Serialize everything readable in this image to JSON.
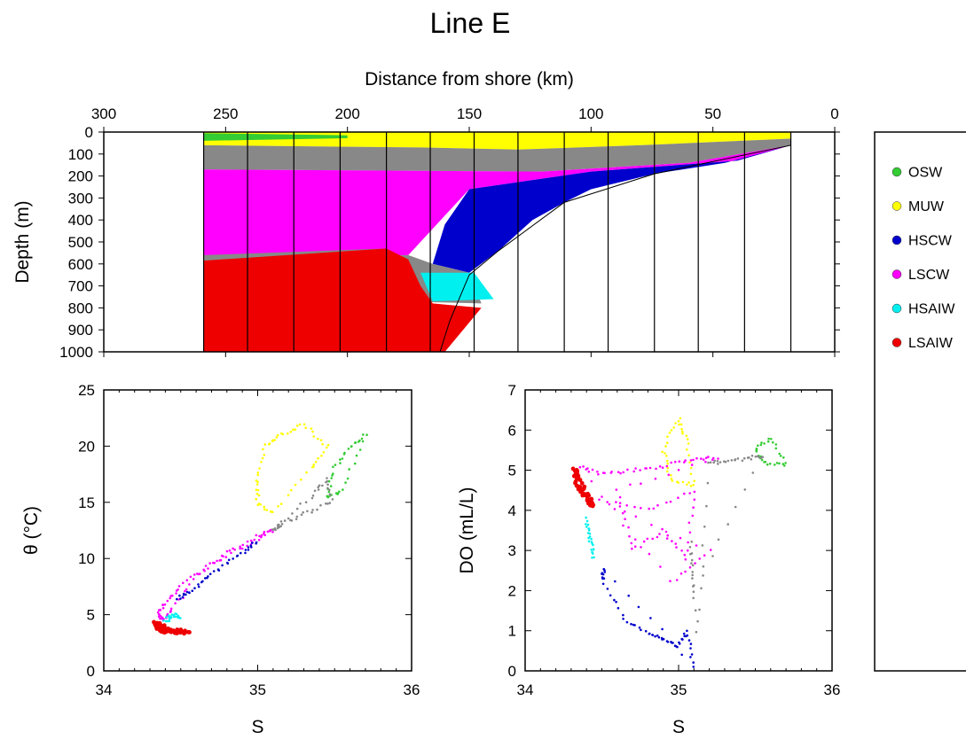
{
  "title": "Line E",
  "colors": {
    "OSW": "#33cc33",
    "MUW": "#ffff00",
    "HSCW": "#0000cc",
    "LSCW": "#ff00ff",
    "HSAIW": "#00f0f0",
    "LSAIW": "#ee0000",
    "mix": "#888888"
  },
  "legend": {
    "items": [
      {
        "label": "OSW",
        "key": "OSW"
      },
      {
        "label": "MUW",
        "key": "MUW"
      },
      {
        "label": "HSCW",
        "key": "HSCW"
      },
      {
        "label": "LSCW",
        "key": "LSCW"
      },
      {
        "label": "HSAIW",
        "key": "HSAIW"
      },
      {
        "label": "LSAIW",
        "key": "LSAIW"
      }
    ]
  },
  "chart_data": [
    {
      "type": "area",
      "xlabel": "Distance from shore (km)",
      "ylabel": "Depth (m)",
      "xlim": [
        300,
        0
      ],
      "ylim": [
        0,
        1000
      ],
      "x_ticks": [
        300,
        250,
        200,
        150,
        100,
        50,
        0
      ],
      "y_ticks": [
        0,
        100,
        200,
        300,
        400,
        500,
        600,
        700,
        800,
        900,
        1000
      ],
      "stations_km": [
        259,
        241,
        222,
        203,
        184,
        166,
        148,
        130,
        111,
        93,
        74,
        56,
        37,
        18
      ],
      "layers": [
        {
          "key": "MUW",
          "poly": [
            [
              259,
              0
            ],
            [
              18,
              0
            ],
            [
              18,
              30
            ],
            [
              80,
              60
            ],
            [
              130,
              80
            ],
            [
              170,
              70
            ],
            [
              259,
              60
            ]
          ]
        },
        {
          "key": "OSW",
          "poly": [
            [
              259,
              5
            ],
            [
              200,
              15
            ],
            [
              200,
              28
            ],
            [
              259,
              40
            ]
          ]
        },
        {
          "key": "mix",
          "poly": [
            [
              259,
              60
            ],
            [
              170,
              70
            ],
            [
              130,
              80
            ],
            [
              80,
              60
            ],
            [
              18,
              30
            ],
            [
              18,
              60
            ],
            [
              60,
              140
            ],
            [
              120,
              180
            ],
            [
              259,
              170
            ]
          ]
        },
        {
          "key": "LSCW",
          "poly": [
            [
              259,
              170
            ],
            [
              120,
              180
            ],
            [
              60,
              140
            ],
            [
              18,
              60
            ],
            [
              40,
              130
            ],
            [
              100,
              180
            ],
            [
              150,
              260
            ],
            [
              165,
              440
            ],
            [
              175,
              560
            ],
            [
              259,
              575
            ]
          ]
        },
        {
          "key": "HSCW",
          "poly": [
            [
              18,
              60
            ],
            [
              40,
              130
            ],
            [
              100,
              180
            ],
            [
              150,
              260
            ],
            [
              160,
              420
            ],
            [
              165,
              600
            ],
            [
              150,
              640
            ],
            [
              138,
              540
            ],
            [
              124,
              400
            ],
            [
              111,
              320
            ],
            [
              100,
              260
            ],
            [
              74,
              190
            ],
            [
              45,
              140
            ]
          ]
        },
        {
          "key": "mix",
          "poly": [
            [
              175,
              560
            ],
            [
              165,
              600
            ],
            [
              150,
              640
            ],
            [
              145,
              780
            ],
            [
              180,
              770
            ],
            [
              184,
              530
            ],
            [
              259,
              560
            ],
            [
              259,
              585
            ]
          ]
        },
        {
          "key": "HSAIW",
          "poly": [
            [
              170,
              640
            ],
            [
              148,
              640
            ],
            [
              140,
              760
            ],
            [
              165,
              770
            ]
          ]
        },
        {
          "key": "LSAIW",
          "poly": [
            [
              259,
              585
            ],
            [
              184,
              530
            ],
            [
              175,
              580
            ],
            [
              170,
              700
            ],
            [
              165,
              780
            ],
            [
              145,
              800
            ],
            [
              160,
              1000
            ],
            [
              259,
              1000
            ]
          ]
        }
      ]
    },
    {
      "type": "scatter",
      "xlabel": "S",
      "ylabel": "θ (°C)",
      "xlim": [
        34,
        36
      ],
      "ylim": [
        0,
        25
      ],
      "x_ticks": [
        34,
        35,
        36
      ],
      "y_ticks": [
        0,
        5,
        10,
        15,
        20,
        25
      ],
      "series": [
        {
          "key": "MUW",
          "points": [
            [
              35.0,
              15
            ],
            [
              35.0,
              17
            ],
            [
              35.05,
              20
            ],
            [
              35.15,
              21
            ],
            [
              35.3,
              22
            ],
            [
              35.45,
              20
            ],
            [
              35.35,
              18
            ],
            [
              35.1,
              14
            ]
          ]
        },
        {
          "key": "OSW",
          "points": [
            [
              35.5,
              18
            ],
            [
              35.6,
              20
            ],
            [
              35.7,
              21
            ],
            [
              35.55,
              16
            ],
            [
              35.45,
              15.5
            ]
          ]
        },
        {
          "key": "mix",
          "points": [
            [
              35.48,
              15
            ],
            [
              35.3,
              14
            ],
            [
              35.15,
              13
            ],
            [
              35.1,
              12.5
            ],
            [
              35.35,
              15.5
            ],
            [
              35.45,
              17
            ]
          ]
        },
        {
          "key": "LSCW",
          "points": [
            [
              35.1,
              12.5
            ],
            [
              34.9,
              11
            ],
            [
              34.7,
              9.5
            ],
            [
              34.5,
              7.5
            ],
            [
              34.4,
              6
            ],
            [
              34.35,
              5
            ],
            [
              34.38,
              4.5
            ],
            [
              34.45,
              5.5
            ],
            [
              34.6,
              8.5
            ],
            [
              34.8,
              10.5
            ],
            [
              35.0,
              12
            ]
          ]
        },
        {
          "key": "HSCW",
          "points": [
            [
              34.48,
              6.5
            ],
            [
              34.55,
              7
            ],
            [
              34.7,
              8.5
            ],
            [
              34.9,
              10.5
            ],
            [
              35.0,
              11.5
            ]
          ]
        },
        {
          "key": "HSAIW",
          "points": [
            [
              34.4,
              4.5
            ],
            [
              34.45,
              5
            ],
            [
              34.5,
              4.8
            ]
          ]
        },
        {
          "key": "LSAIW",
          "points": [
            [
              34.33,
              4.3
            ],
            [
              34.35,
              3.8
            ],
            [
              34.4,
              3.5
            ],
            [
              34.48,
              3.4
            ],
            [
              34.55,
              3.4
            ],
            [
              34.36,
              4
            ],
            [
              34.42,
              3.6
            ]
          ]
        }
      ]
    },
    {
      "type": "scatter",
      "xlabel": "S",
      "ylabel": "DO (mL/L)",
      "xlim": [
        34,
        36
      ],
      "ylim": [
        0,
        7
      ],
      "x_ticks": [
        34,
        35,
        36
      ],
      "y_ticks": [
        0,
        1,
        2,
        3,
        4,
        5,
        6,
        7
      ],
      "series": [
        {
          "key": "LSCW",
          "points": [
            [
              34.35,
              5.1
            ],
            [
              34.5,
              4.9
            ],
            [
              34.7,
              5.0
            ],
            [
              34.9,
              5.1
            ],
            [
              35.1,
              5.3
            ],
            [
              35.25,
              5.3
            ],
            [
              34.6,
              4.5
            ],
            [
              34.7,
              3.0
            ],
            [
              34.9,
              3.5
            ],
            [
              35.05,
              2.8
            ],
            [
              35.1,
              4.5
            ],
            [
              34.8,
              4.0
            ],
            [
              34.45,
              4.3
            ],
            [
              35.2,
              3.0
            ],
            [
              34.95,
              2.2
            ]
          ]
        },
        {
          "key": "LSAIW",
          "points": [
            [
              34.32,
              5.0
            ],
            [
              34.34,
              4.6
            ],
            [
              34.38,
              4.4
            ],
            [
              34.42,
              4.2
            ],
            [
              34.45,
              4.1
            ],
            [
              34.36,
              4.8
            ]
          ]
        },
        {
          "key": "HSAIW",
          "points": [
            [
              34.4,
              3.8
            ],
            [
              34.42,
              3.3
            ],
            [
              34.45,
              2.8
            ]
          ]
        },
        {
          "key": "HSCW",
          "points": [
            [
              34.5,
              2.3
            ],
            [
              34.65,
              1.3
            ],
            [
              34.8,
              0.9
            ],
            [
              34.9,
              0.8
            ],
            [
              35.0,
              0.6
            ],
            [
              35.05,
              1.0
            ],
            [
              35.1,
              0.1
            ],
            [
              34.52,
              2.5
            ]
          ]
        },
        {
          "key": "MUW",
          "points": [
            [
              34.9,
              5.5
            ],
            [
              35.0,
              6.3
            ],
            [
              35.05,
              5.8
            ],
            [
              35.1,
              4.6
            ],
            [
              34.95,
              4.8
            ]
          ]
        },
        {
          "key": "OSW",
          "points": [
            [
              35.5,
              5.5
            ],
            [
              35.6,
              5.8
            ],
            [
              35.7,
              5.1
            ],
            [
              35.55,
              5.2
            ]
          ]
        },
        {
          "key": "mix",
          "points": [
            [
              35.3,
              5.2
            ],
            [
              35.45,
              5.3
            ],
            [
              35.55,
              5.35
            ],
            [
              35.1,
              2.0
            ],
            [
              35.08,
              3.2
            ],
            [
              35.12,
              1.0
            ],
            [
              35.2,
              5.2
            ]
          ]
        }
      ]
    }
  ]
}
